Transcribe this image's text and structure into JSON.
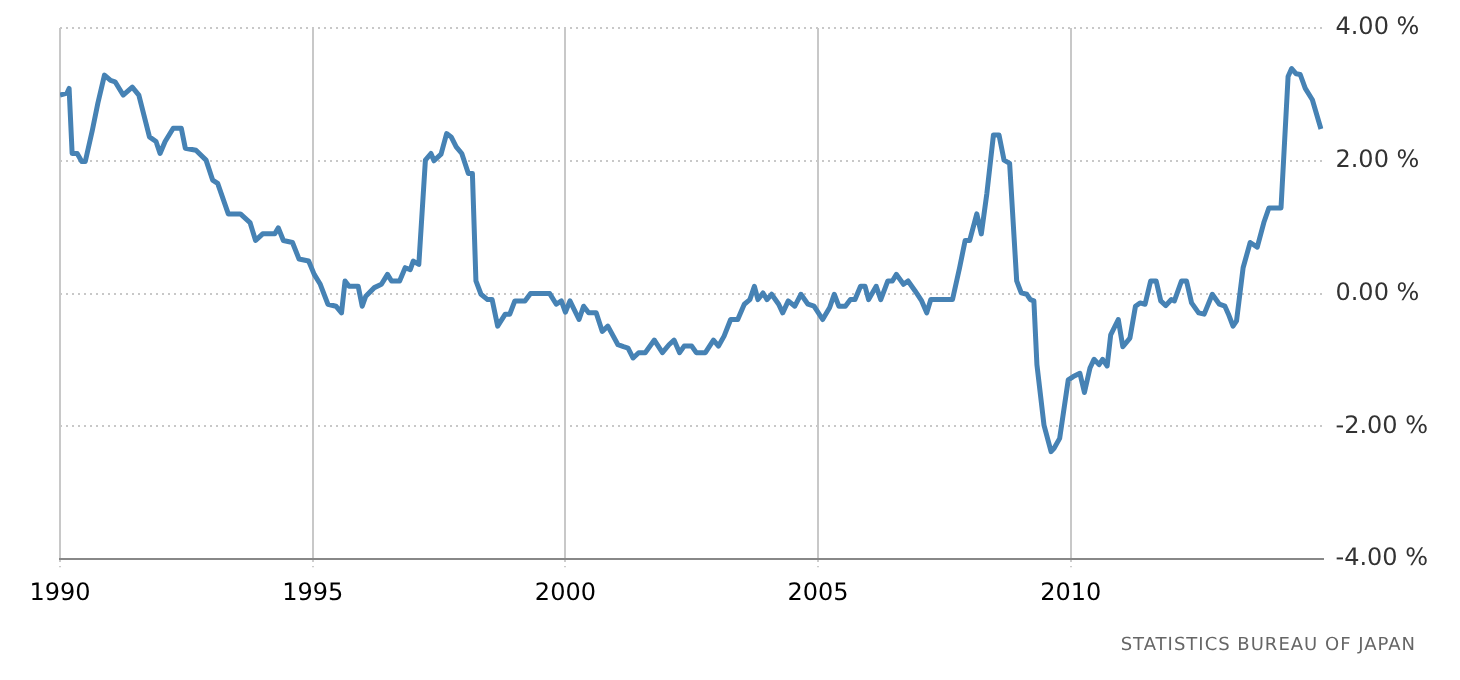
{
  "chart_data": {
    "type": "line",
    "x": [
      1990.0,
      1990.14,
      1990.18,
      1990.24,
      1990.34,
      1990.43,
      1990.5,
      1990.64,
      1990.75,
      1990.88,
      1991.0,
      1991.09,
      1991.25,
      1991.43,
      1991.56,
      1991.77,
      1991.9,
      1991.98,
      1992.08,
      1992.24,
      1992.4,
      1992.48,
      1992.69,
      1992.89,
      1993.02,
      1993.12,
      1993.33,
      1993.57,
      1993.76,
      1993.87,
      1994.01,
      1994.25,
      1994.32,
      1994.42,
      1994.6,
      1994.73,
      1994.92,
      1995.03,
      1995.15,
      1995.3,
      1995.46,
      1995.57,
      1995.64,
      1995.72,
      1995.9,
      1995.98,
      1996.05,
      1996.22,
      1996.36,
      1996.48,
      1996.56,
      1996.72,
      1996.83,
      1996.93,
      1996.99,
      1997.1,
      1997.23,
      1997.34,
      1997.4,
      1997.54,
      1997.65,
      1997.74,
      1997.84,
      1997.95,
      1998.08,
      1998.16,
      1998.23,
      1998.33,
      1998.46,
      1998.55,
      1998.66,
      1998.81,
      1998.9,
      1999.0,
      1999.2,
      1999.31,
      1999.58,
      1999.69,
      1999.82,
      1999.92,
      2000.0,
      2000.09,
      2000.27,
      2000.36,
      2000.46,
      2000.61,
      2000.73,
      2000.84,
      2001.04,
      2001.15,
      2001.24,
      2001.34,
      2001.45,
      2001.58,
      2001.76,
      2001.92,
      2002.05,
      2002.15,
      2002.26,
      2002.35,
      2002.5,
      2002.59,
      2002.77,
      2002.93,
      2003.03,
      2003.14,
      2003.27,
      2003.41,
      2003.54,
      2003.65,
      2003.74,
      2003.81,
      2003.91,
      2003.99,
      2004.08,
      2004.22,
      2004.3,
      2004.41,
      2004.54,
      2004.66,
      2004.8,
      2004.92,
      2005.09,
      2005.23,
      2005.32,
      2005.41,
      2005.54,
      2005.64,
      2005.73,
      2005.84,
      2005.93,
      2006.0,
      2006.15,
      2006.24,
      2006.38,
      2006.47,
      2006.55,
      2006.69,
      2006.78,
      2006.92,
      2007.05,
      2007.15,
      2007.23,
      2007.46,
      2007.66,
      2007.8,
      2007.91,
      2008.0,
      2008.14,
      2008.23,
      2008.34,
      2008.47,
      2008.58,
      2008.68,
      2008.79,
      2008.93,
      2009.02,
      2009.13,
      2009.2,
      2009.27,
      2009.33,
      2009.47,
      2009.61,
      2009.67,
      2009.78,
      2009.95,
      2010.05,
      2010.18,
      2010.27,
      2010.38,
      2010.46,
      2010.56,
      2010.63,
      2010.72,
      2010.79,
      2010.94,
      2011.03,
      2011.17,
      2011.28,
      2011.37,
      2011.47,
      2011.58,
      2011.69,
      2011.78,
      2011.88,
      2011.99,
      2012.05,
      2012.19,
      2012.29,
      2012.39,
      2012.53,
      2012.64,
      2012.8,
      2012.94,
      2013.05,
      2013.12,
      2013.21,
      2013.28,
      2013.41,
      2013.55,
      2013.69,
      2013.82,
      2013.92,
      2014.16,
      2014.3,
      2014.37,
      2014.46,
      2014.54,
      2014.64,
      2014.78,
      2014.95
    ],
    "values": [
      2.99,
      3.02,
      3.09,
      2.11,
      2.11,
      1.99,
      1.99,
      2.46,
      2.87,
      3.29,
      3.21,
      3.19,
      2.99,
      3.11,
      2.99,
      2.36,
      2.29,
      2.11,
      2.29,
      2.49,
      2.49,
      2.19,
      2.16,
      2.01,
      1.71,
      1.66,
      1.2,
      1.2,
      1.07,
      0.8,
      0.9,
      0.9,
      0.99,
      0.8,
      0.77,
      0.52,
      0.49,
      0.29,
      0.14,
      -0.16,
      -0.19,
      -0.29,
      0.19,
      0.11,
      0.11,
      -0.19,
      -0.04,
      0.09,
      0.14,
      0.29,
      0.19,
      0.19,
      0.39,
      0.36,
      0.49,
      0.44,
      2.01,
      2.11,
      2.0,
      2.1,
      2.41,
      2.36,
      2.21,
      2.11,
      1.81,
      1.81,
      0.19,
      -0.01,
      -0.09,
      -0.09,
      -0.49,
      -0.31,
      -0.31,
      -0.11,
      -0.11,
      0,
      0,
      0,
      -0.16,
      -0.11,
      -0.28,
      -0.11,
      -0.39,
      -0.19,
      -0.29,
      -0.29,
      -0.57,
      -0.49,
      -0.77,
      -0.8,
      -0.82,
      -0.97,
      -0.89,
      -0.89,
      -0.7,
      -0.89,
      -0.77,
      -0.7,
      -0.89,
      -0.79,
      -0.79,
      -0.89,
      -0.89,
      -0.7,
      -0.79,
      -0.64,
      -0.39,
      -0.39,
      -0.16,
      -0.09,
      0.11,
      -0.09,
      0.01,
      -0.09,
      -0.01,
      -0.16,
      -0.29,
      -0.11,
      -0.19,
      -0.01,
      -0.16,
      -0.19,
      -0.39,
      -0.21,
      -0.01,
      -0.19,
      -0.19,
      -0.09,
      -0.09,
      0.11,
      0.11,
      -0.09,
      0.11,
      -0.09,
      0.19,
      0.19,
      0.29,
      0.14,
      0.19,
      0.04,
      -0.11,
      -0.29,
      -0.09,
      -0.09,
      -0.09,
      0.39,
      0.8,
      0.8,
      1.2,
      0.9,
      1.51,
      2.39,
      2.39,
      2.01,
      1.96,
      0.19,
      0.01,
      -0.01,
      -0.09,
      -0.11,
      -1.07,
      -1.98,
      -2.38,
      -2.33,
      -2.18,
      -1.3,
      -1.25,
      -1.2,
      -1.49,
      -1.12,
      -0.99,
      -1.07,
      -0.99,
      -1.09,
      -0.62,
      -0.39,
      -0.8,
      -0.67,
      -0.19,
      -0.14,
      -0.16,
      0.19,
      0.19,
      -0.11,
      -0.18,
      -0.09,
      -0.11,
      0.19,
      0.19,
      -0.14,
      -0.29,
      -0.31,
      -0.01,
      -0.16,
      -0.19,
      -0.31,
      -0.49,
      -0.41,
      0.39,
      0.77,
      0.7,
      1.07,
      1.29,
      1.29,
      3.27,
      3.39,
      3.31,
      3.3,
      3.09,
      2.92,
      2.48
    ],
    "color": "#4682b4",
    "xlim": [
      1990,
      2015
    ],
    "xticks": [
      1990,
      1995,
      2000,
      2005,
      2010
    ],
    "ylim": [
      -4,
      4
    ],
    "yticks": [
      {
        "value": -4,
        "label": "-4.00 %"
      },
      {
        "value": -2,
        "label": "-2.00 %"
      },
      {
        "value": 0,
        "label": "0.00 %"
      },
      {
        "value": 2,
        "label": "2.00 %"
      },
      {
        "value": 4,
        "label": "4.00 %"
      }
    ],
    "grid": true,
    "marker": "none",
    "line_style": "solid",
    "annotations": [
      "STATISTICS BUREAU OF JAPAN"
    ]
  }
}
